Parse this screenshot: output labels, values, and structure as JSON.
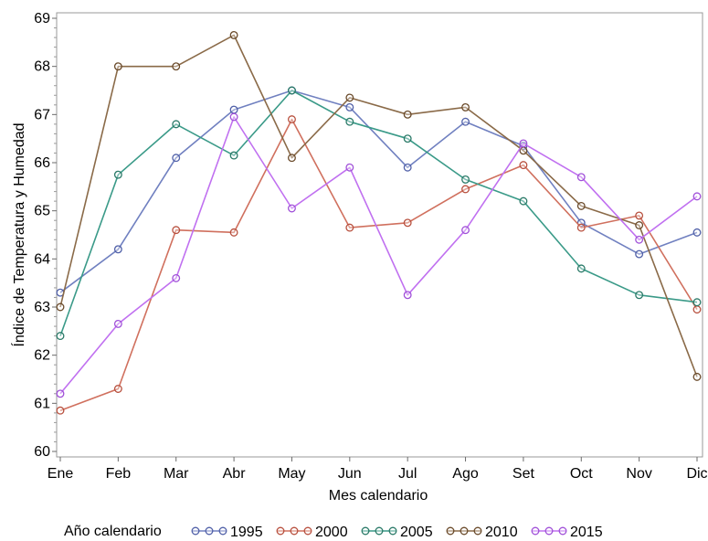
{
  "chart_data": {
    "type": "line",
    "xlabel": "Mes calendario",
    "ylabel": "Índice de Temperatura y Humedad",
    "categories": [
      "Ene",
      "Feb",
      "Mar",
      "Abr",
      "May",
      "Jun",
      "Jul",
      "Ago",
      "Set",
      "Oct",
      "Nov",
      "Dic"
    ],
    "ylim": [
      60,
      69
    ],
    "yticks": [
      "60",
      "61",
      "62",
      "63",
      "64",
      "65",
      "66",
      "67",
      "68",
      "69"
    ],
    "grid": false,
    "legend": {
      "title": "Año calendario",
      "position": "bottom"
    },
    "series": [
      {
        "name": "1995",
        "color": "#7080c0",
        "marker_color": "#5060a8",
        "values": [
          63.3,
          64.2,
          66.1,
          67.1,
          67.5,
          67.15,
          65.9,
          66.85,
          66.35,
          64.75,
          64.1,
          64.55
        ]
      },
      {
        "name": "2000",
        "color": "#d0705e",
        "marker_color": "#b8503e",
        "values": [
          60.85,
          61.3,
          64.6,
          64.55,
          66.9,
          64.65,
          64.75,
          65.45,
          65.95,
          64.65,
          64.9,
          62.95
        ]
      },
      {
        "name": "2005",
        "color": "#3a9a88",
        "marker_color": "#2a7a68",
        "values": [
          62.4,
          65.75,
          66.8,
          66.15,
          67.5,
          66.85,
          66.5,
          65.65,
          65.2,
          63.8,
          63.25,
          63.1
        ]
      },
      {
        "name": "2010",
        "color": "#8a6a48",
        "marker_color": "#6a4a2a",
        "values": [
          63.0,
          68.0,
          68.0,
          68.65,
          66.1,
          67.35,
          67.0,
          67.15,
          66.25,
          65.1,
          64.7,
          61.55
        ]
      },
      {
        "name": "2015",
        "color": "#c070f0",
        "marker_color": "#a050d8",
        "values": [
          61.2,
          62.65,
          63.6,
          66.95,
          65.05,
          65.9,
          63.25,
          64.6,
          66.4,
          65.7,
          64.4,
          65.3
        ]
      }
    ]
  }
}
